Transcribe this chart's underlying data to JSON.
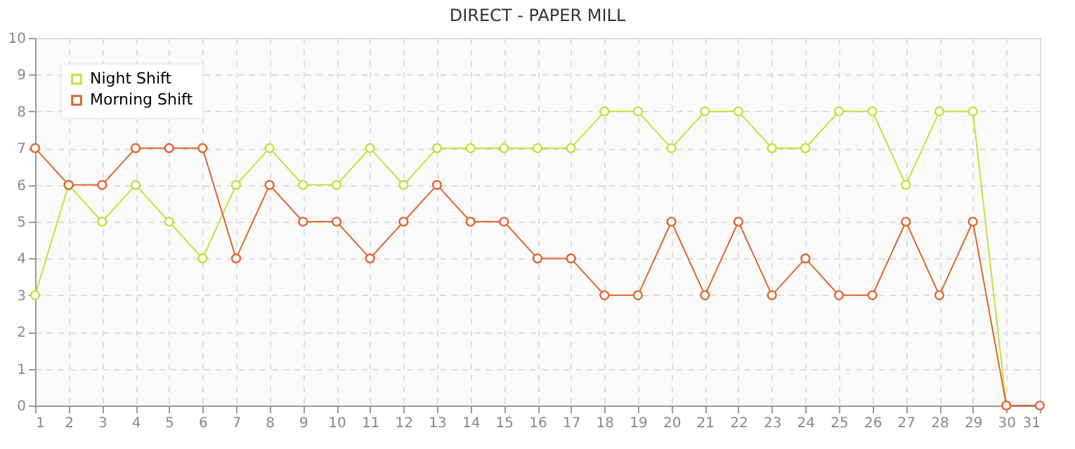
{
  "chart_data": {
    "type": "line",
    "title": "DIRECT - PAPER MILL",
    "x": [
      1,
      2,
      3,
      4,
      5,
      6,
      7,
      8,
      9,
      10,
      11,
      12,
      13,
      14,
      15,
      16,
      17,
      18,
      19,
      20,
      21,
      22,
      23,
      24,
      25,
      26,
      27,
      28,
      29,
      30,
      31
    ],
    "series": [
      {
        "name": "Night Shift",
        "color": "#c5e03a",
        "values": [
          3,
          6,
          5,
          6,
          5,
          4,
          6,
          7,
          6,
          6,
          7,
          6,
          7,
          7,
          7,
          7,
          7,
          8,
          8,
          7,
          8,
          8,
          7,
          7,
          8,
          8,
          6,
          8,
          8,
          0,
          null
        ]
      },
      {
        "name": "Morning Shift",
        "color": "#e0642e",
        "values": [
          7,
          6,
          6,
          7,
          7,
          7,
          4,
          6,
          5,
          5,
          4,
          5,
          6,
          5,
          5,
          4,
          4,
          3,
          3,
          5,
          3,
          5,
          3,
          4,
          3,
          3,
          5,
          3,
          5,
          0,
          0
        ]
      }
    ],
    "xlim": [
      1,
      31
    ],
    "xticks": [
      1,
      2,
      3,
      4,
      5,
      6,
      7,
      8,
      9,
      10,
      11,
      12,
      13,
      14,
      15,
      16,
      17,
      18,
      19,
      20,
      21,
      22,
      23,
      24,
      25,
      26,
      27,
      28,
      29,
      30,
      31
    ],
    "ylim": [
      0,
      10
    ],
    "yticks": [
      0,
      1,
      2,
      3,
      4,
      5,
      6,
      7,
      8,
      9,
      10
    ],
    "grid": true,
    "legend": "top left",
    "marker": "circle",
    "line_style": "solid"
  }
}
